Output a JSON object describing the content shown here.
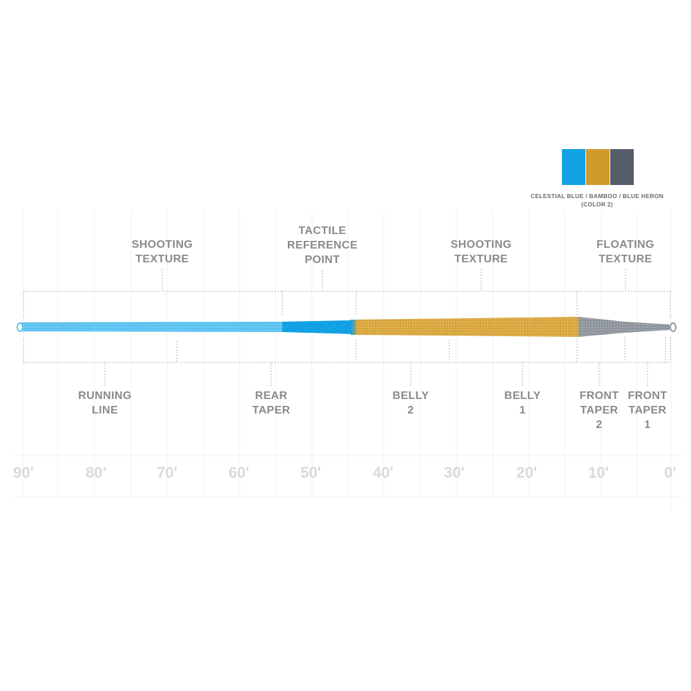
{
  "swatches": [
    {
      "name": "Celestial Blue",
      "color": "#12a1e2"
    },
    {
      "name": "Bamboo",
      "color": "#cf9a2a"
    },
    {
      "name": "Blue Heron",
      "color": "#555d66"
    }
  ],
  "color_caption": {
    "line1": "CELESTIAL BLUE / BAMBOO / BLUE HERON",
    "line2": "(COLOR 2)"
  },
  "upper_labels": [
    {
      "lines": [
        "SHOOTING",
        "TEXTURE"
      ]
    },
    {
      "lines": [
        "TACTILE",
        "REFERENCE",
        "POINT"
      ]
    },
    {
      "lines": [
        "SHOOTING",
        "TEXTURE"
      ]
    },
    {
      "lines": [
        "FLOATING",
        "TEXTURE"
      ]
    }
  ],
  "lower_labels": [
    {
      "lines": [
        "RUNNING",
        "LINE"
      ]
    },
    {
      "lines": [
        "REAR",
        "TAPER"
      ]
    },
    {
      "lines": [
        "BELLY",
        "2"
      ]
    },
    {
      "lines": [
        "BELLY",
        "1"
      ]
    },
    {
      "lines": [
        "FRONT",
        "TAPER",
        "2"
      ]
    },
    {
      "lines": [
        "FRONT",
        "TAPER",
        "1"
      ]
    }
  ],
  "scale_ticks": [
    "90'",
    "80'",
    "70'",
    "60'",
    "50'",
    "40'",
    "30'",
    "20'",
    "10'",
    "0'"
  ],
  "line_colors": {
    "running": "#58c2f0",
    "rear_taper": "#12a1e2",
    "belly": "#d8a53a",
    "front": "#8e949c"
  }
}
